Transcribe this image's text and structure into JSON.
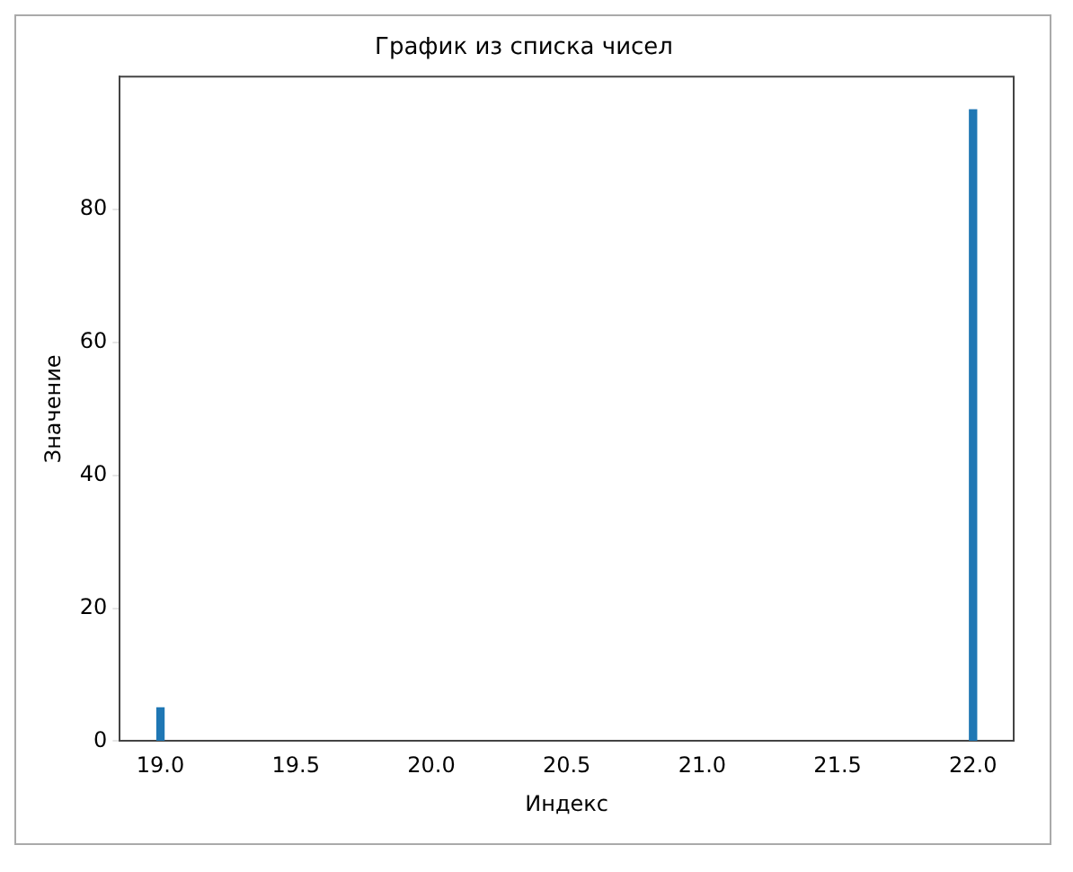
{
  "chart_data": {
    "type": "bar",
    "title": "График из списка чисел",
    "xlabel": "Индекс",
    "ylabel": "Значение",
    "x": [
      19,
      22
    ],
    "values": [
      5,
      95
    ],
    "color": "#1f77b4",
    "xlim": [
      18.85,
      22.15
    ],
    "xticks": [
      {
        "value": 19,
        "label": "19.0"
      },
      {
        "value": 19.5,
        "label": "19.5"
      },
      {
        "value": 20,
        "label": "20.0"
      },
      {
        "value": 20.5,
        "label": "20.5"
      },
      {
        "value": 21,
        "label": "21.0"
      },
      {
        "value": 21.5,
        "label": "21.5"
      },
      {
        "value": 22,
        "label": "22.0"
      }
    ],
    "ylim": [
      0,
      100
    ],
    "yticks": [
      0,
      20,
      40,
      60,
      80
    ],
    "grid": false,
    "legend": false
  }
}
